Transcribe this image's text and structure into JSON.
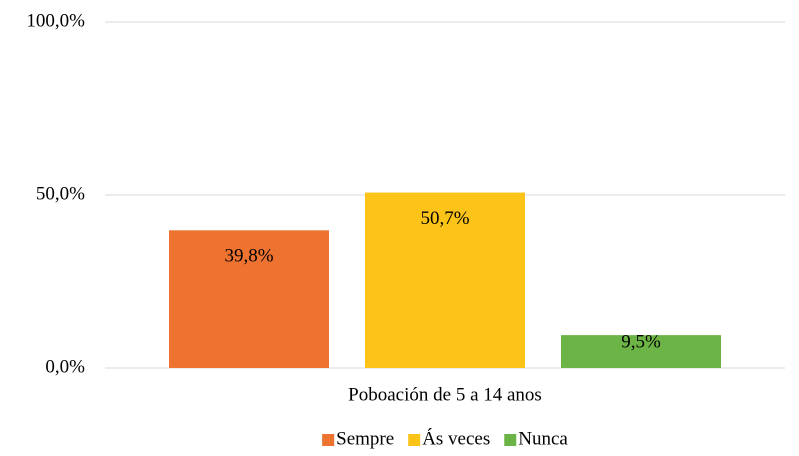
{
  "chart_data": {
    "type": "bar",
    "categories": [
      "Poboación de 5 a 14 anos"
    ],
    "series": [
      {
        "name": "Sempre",
        "color": "#ee7330",
        "values": [
          39.8
        ],
        "value_labels": [
          "39,8%"
        ]
      },
      {
        "name": "Ás veces",
        "color": "#fcc419",
        "values": [
          50.7
        ],
        "value_labels": [
          "50,7%"
        ]
      },
      {
        "name": "Nunca",
        "color": "#6cb446",
        "values": [
          9.5
        ],
        "value_labels": [
          "9,5%"
        ]
      }
    ],
    "ylim": [
      0,
      100
    ],
    "yticks": [
      {
        "value": 0,
        "label": "0,0%"
      },
      {
        "value": 50,
        "label": "50,0%"
      },
      {
        "value": 100,
        "label": "100,0%"
      }
    ],
    "grid": true,
    "legend": "bottom"
  }
}
